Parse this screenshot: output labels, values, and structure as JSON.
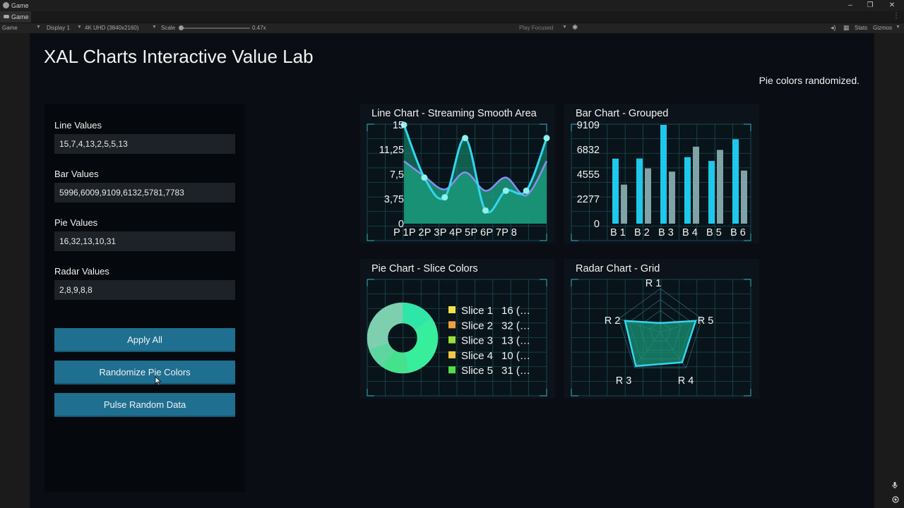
{
  "window": {
    "title": "Game"
  },
  "tab": {
    "label": "Game"
  },
  "toolbar": {
    "view_select": "Game",
    "display_select": "Display 1",
    "resolution_select": "4K UHD (3840x2160)",
    "scale_label": "Scale",
    "scale_value": "0.47x",
    "play_mode": "Play Focused",
    "stats": "Stats",
    "gizmos": "Gizmos"
  },
  "app": {
    "title": "XAL Charts Interactive Value Lab",
    "status": "Pie colors randomized."
  },
  "fields": [
    {
      "label": "Line Values",
      "value": "15,7,4,13,2,5,5,13"
    },
    {
      "label": "Bar Values",
      "value": "5996,6009,9109,6132,5781,7783"
    },
    {
      "label": "Pie Values",
      "value": "16,32,13,10,31"
    },
    {
      "label": "Radar Values",
      "value": "2,8,9,8,8"
    }
  ],
  "buttons": {
    "apply_all": "Apply All",
    "randomize_pie": "Randomize Pie Colors",
    "pulse_random": "Pulse Random Data"
  },
  "charts": {
    "line": {
      "title": "Line Chart - Streaming Smooth Area"
    },
    "bar": {
      "title": "Bar Chart - Grouped"
    },
    "pie": {
      "title": "Pie Chart - Slice Colors"
    },
    "radar": {
      "title": "Radar Chart - Grid"
    }
  },
  "chart_data": [
    {
      "type": "area",
      "title": "Line Chart - Streaming Smooth Area",
      "categories": [
        "P 1",
        "P 2",
        "P 3",
        "P 4",
        "P 5",
        "P 6",
        "P 7",
        "P 8"
      ],
      "y_ticks": [
        "0",
        "3,75",
        "7,5",
        "11,25",
        "15"
      ],
      "ylim": [
        0,
        15
      ],
      "series": [
        {
          "values": [
            15,
            7,
            4,
            13,
            2,
            5,
            5,
            13
          ],
          "color": "#33d6ee"
        },
        {
          "values": [
            9.5,
            7.2,
            5.2,
            7.8,
            5.0,
            7.0,
            4.3,
            9.5
          ],
          "color": "#8a8ef0"
        }
      ],
      "fill_color": "#1a9a7c",
      "grid": true
    },
    {
      "type": "bar",
      "title": "Bar Chart - Grouped",
      "categories": [
        "B 1",
        "B 2",
        "B 3",
        "B 4",
        "B 5",
        "B 6"
      ],
      "y_ticks": [
        "0",
        "2277",
        "4555",
        "6832",
        "9109"
      ],
      "ylim": [
        0,
        9109
      ],
      "series": [
        {
          "values": [
            5996,
            6009,
            9109,
            6132,
            5781,
            7783
          ],
          "color": "#1ec8ec"
        },
        {
          "values": [
            3600,
            5100,
            4800,
            7100,
            6800,
            4900
          ],
          "color": "#7fa3a6"
        }
      ],
      "grid": true
    },
    {
      "type": "pie",
      "title": "Pie Chart - Slice Colors",
      "labels": [
        "Slice 1",
        "Slice 2",
        "Slice 3",
        "Slice 4",
        "Slice 5"
      ],
      "values": [
        16,
        32,
        13,
        10,
        31
      ],
      "legend_values": [
        "16 (…",
        "32 (…",
        "13 (…",
        "10 (…",
        "31 (…"
      ],
      "slice_colors": [
        "#2ee6a8",
        "#36ee9c",
        "#44e28c",
        "#5ed6a2",
        "#7ecfb0"
      ],
      "legend_colors": [
        "#f0e24a",
        "#f0a040",
        "#9adf3a",
        "#f0c848",
        "#4ede48"
      ],
      "donut": true
    },
    {
      "type": "radar",
      "title": "Radar Chart - Grid",
      "axes": [
        "R 1",
        "R 2",
        "R 3",
        "R 4",
        "R 5"
      ],
      "values": [
        2,
        8,
        9,
        8,
        8
      ],
      "max": 10,
      "color": "#33d6ee",
      "fill_color": "#1a9a7c",
      "grid": true
    }
  ]
}
